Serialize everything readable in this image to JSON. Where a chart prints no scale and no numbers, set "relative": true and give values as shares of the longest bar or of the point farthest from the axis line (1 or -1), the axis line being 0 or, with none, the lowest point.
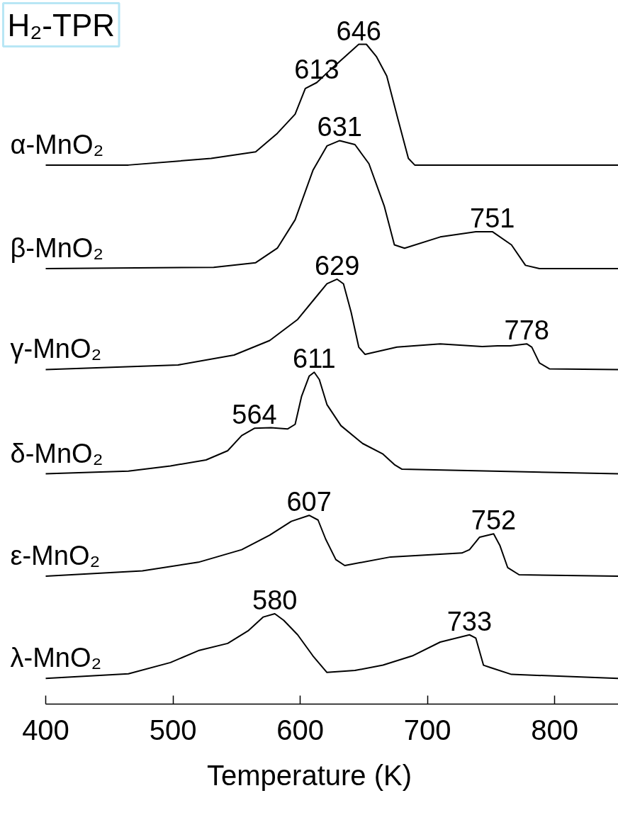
{
  "chart_data": {
    "type": "line",
    "title": "H₂-TPR",
    "xlabel": "Temperature (K)",
    "relative": true,
    "xlim": [
      400,
      850
    ],
    "xticks": [
      400,
      500,
      600,
      700,
      800
    ],
    "tick_labels": "x",
    "grid": false,
    "line_style": "solid",
    "series": [
      {
        "name": "α-MnO₂",
        "color": "#000000",
        "x": [
          400,
          465,
          530,
          565,
          582,
          596,
          604,
          613,
          624,
          635,
          646,
          652,
          660,
          668,
          677,
          685,
          690,
          727,
          850
        ],
        "values": [
          0.817,
          0.817,
          0.827,
          0.837,
          0.865,
          0.894,
          0.933,
          0.942,
          0.962,
          0.981,
          1.0,
          1.0,
          0.981,
          0.952,
          0.885,
          0.827,
          0.817,
          0.817,
          0.817
        ]
      },
      {
        "name": "β-MnO₂",
        "color": "#000000",
        "x": [
          400,
          532,
          565,
          582,
          596,
          610,
          621,
          631,
          643,
          654,
          666,
          674,
          682,
          710,
          738,
          751,
          766,
          777,
          788,
          850
        ],
        "values": [
          0.66,
          0.662,
          0.669,
          0.691,
          0.734,
          0.809,
          0.846,
          0.854,
          0.848,
          0.819,
          0.755,
          0.696,
          0.691,
          0.708,
          0.716,
          0.716,
          0.696,
          0.665,
          0.66,
          0.66
        ]
      },
      {
        "name": "γ-MnO₂",
        "color": "#000000",
        "x": [
          400,
          504,
          548,
          576,
          598,
          612,
          621,
          629,
          634,
          640,
          646,
          651,
          676,
          710,
          743,
          755,
          765,
          778,
          782,
          788,
          796,
          850
        ],
        "values": [
          0.507,
          0.514,
          0.529,
          0.551,
          0.583,
          0.616,
          0.637,
          0.644,
          0.637,
          0.594,
          0.541,
          0.53,
          0.541,
          0.546,
          0.542,
          0.543,
          0.543,
          0.546,
          0.541,
          0.517,
          0.508,
          0.507
        ]
      },
      {
        "name": "δ-MnO₂",
        "color": "#000000",
        "x": [
          400,
          465,
          498,
          526,
          543,
          554,
          564,
          577,
          590,
          596,
          601,
          607,
          611,
          615,
          621,
          632,
          649,
          665,
          674,
          680,
          850
        ],
        "values": [
          0.349,
          0.353,
          0.361,
          0.37,
          0.384,
          0.407,
          0.418,
          0.419,
          0.417,
          0.424,
          0.466,
          0.497,
          0.503,
          0.492,
          0.454,
          0.422,
          0.395,
          0.379,
          0.363,
          0.356,
          0.349
        ]
      },
      {
        "name": "ε-MnO₂",
        "color": "#000000",
        "x": [
          400,
          476,
          520,
          554,
          576,
          593,
          607,
          614,
          620,
          628,
          635,
          671,
          727,
          733,
          741,
          752,
          757,
          763,
          772,
          850
        ],
        "values": [
          0.194,
          0.202,
          0.215,
          0.234,
          0.256,
          0.277,
          0.286,
          0.279,
          0.25,
          0.219,
          0.21,
          0.223,
          0.229,
          0.234,
          0.253,
          0.258,
          0.24,
          0.207,
          0.196,
          0.194
        ]
      },
      {
        "name": "λ-MnO₂",
        "color": "#000000",
        "x": [
          400,
          465,
          498,
          520,
          543,
          559,
          571,
          580,
          587,
          598,
          610,
          621,
          643,
          665,
          688,
          710,
          733,
          738,
          744,
          750,
          766,
          850
        ],
        "values": [
          0.039,
          0.046,
          0.063,
          0.081,
          0.092,
          0.111,
          0.132,
          0.137,
          0.127,
          0.105,
          0.073,
          0.048,
          0.051,
          0.059,
          0.073,
          0.094,
          0.105,
          0.1,
          0.059,
          0.055,
          0.045,
          0.039
        ]
      }
    ],
    "annotations": [
      {
        "text": "646",
        "x": 646,
        "y": 1.0
      },
      {
        "text": "613",
        "x": 613,
        "y": 0.942
      },
      {
        "text": "631",
        "x": 631,
        "y": 0.854
      },
      {
        "text": "751",
        "x": 751,
        "y": 0.716
      },
      {
        "text": "629",
        "x": 629,
        "y": 0.644
      },
      {
        "text": "778",
        "x": 778,
        "y": 0.546
      },
      {
        "text": "611",
        "x": 611,
        "y": 0.503
      },
      {
        "text": "564",
        "x": 564,
        "y": 0.418
      },
      {
        "text": "607",
        "x": 607,
        "y": 0.286
      },
      {
        "text": "752",
        "x": 752,
        "y": 0.258
      },
      {
        "text": "580",
        "x": 580,
        "y": 0.137
      },
      {
        "text": "733",
        "x": 733,
        "y": 0.105
      }
    ]
  }
}
